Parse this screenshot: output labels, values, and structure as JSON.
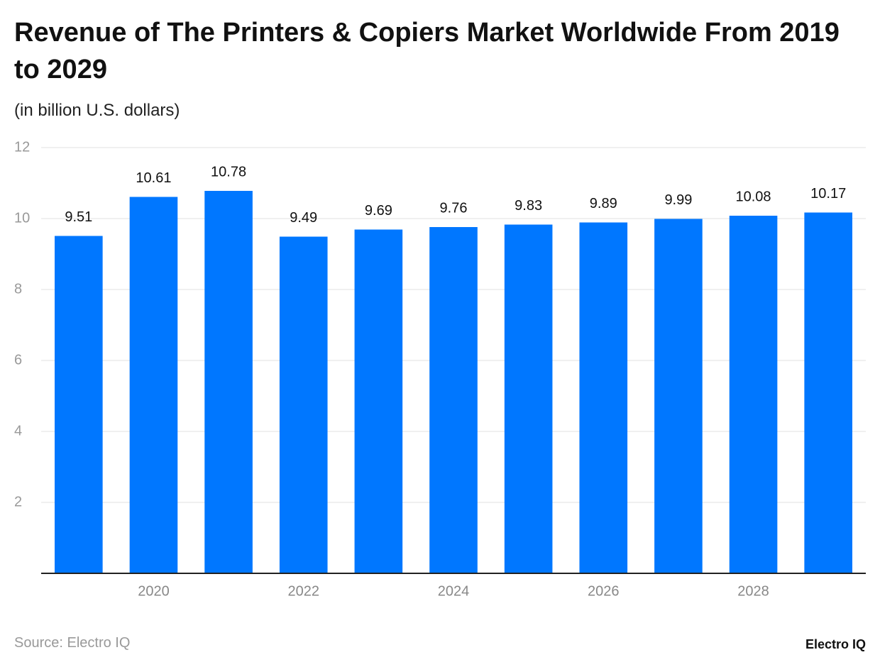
{
  "chart_data": {
    "type": "bar",
    "title": "Revenue of The Printers & Copiers Market Worldwide From 2019 to 2029",
    "subtitle": "(in billion U.S. dollars)",
    "categories": [
      null,
      "2020",
      null,
      "2022",
      null,
      "2024",
      null,
      "2026",
      null,
      "2028",
      null
    ],
    "values": [
      9.51,
      10.61,
      10.78,
      9.49,
      9.69,
      9.76,
      9.83,
      9.89,
      9.99,
      10.08,
      10.17
    ],
    "color": "#0077ff",
    "ylim": [
      0,
      12
    ],
    "yticks": [
      2,
      4,
      6,
      8,
      10,
      12
    ],
    "grid": true,
    "source": "Source: Electro IQ",
    "brand": "Electro IQ"
  }
}
